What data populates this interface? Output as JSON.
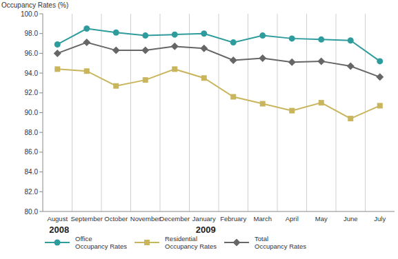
{
  "chart_data": {
    "type": "line",
    "y_label": "Occupancy Rates (%)",
    "categories": [
      "August",
      "September",
      "October",
      "November",
      "December",
      "January",
      "February",
      "March",
      "April",
      "May",
      "June",
      "July"
    ],
    "year_labels": [
      "2008",
      null,
      null,
      null,
      null,
      "2009",
      null,
      null,
      null,
      null,
      null,
      null
    ],
    "series": [
      {
        "name": "Office Occupancy Rates",
        "color": "#2e9c9c",
        "marker": "circle",
        "values": [
          96.9,
          98.5,
          98.1,
          97.8,
          97.9,
          98.0,
          97.1,
          97.8,
          97.5,
          97.4,
          97.3,
          95.2
        ]
      },
      {
        "name": "Residential Occupancy Rates",
        "color": "#c9b55c",
        "marker": "square",
        "values": [
          94.4,
          94.2,
          92.7,
          93.3,
          94.4,
          93.5,
          91.6,
          90.9,
          90.2,
          91.0,
          89.4,
          90.7
        ]
      },
      {
        "name": "Total Occupancy Rates",
        "color": "#666666",
        "marker": "diamond",
        "values": [
          96.0,
          97.1,
          96.3,
          96.3,
          96.7,
          96.5,
          95.3,
          95.5,
          95.1,
          95.2,
          94.7,
          93.6
        ]
      }
    ],
    "ylim": [
      80,
      100
    ],
    "yticks": [
      {
        "value": 80,
        "label": "80.0"
      },
      {
        "value": 82,
        "label": "82.0"
      },
      {
        "value": 84,
        "label": "84.0"
      },
      {
        "value": 86,
        "label": "86.0"
      },
      {
        "value": 88,
        "label": "88.0"
      },
      {
        "value": 90,
        "label": "90.0"
      },
      {
        "value": 92,
        "label": "92.0"
      },
      {
        "value": 94,
        "label": "94.0"
      },
      {
        "value": 96,
        "label": "96.0"
      },
      {
        "value": 98,
        "label": "98.0"
      },
      {
        "value": 100,
        "label": "100.0"
      }
    ],
    "grid": true,
    "legend": "bottom"
  }
}
